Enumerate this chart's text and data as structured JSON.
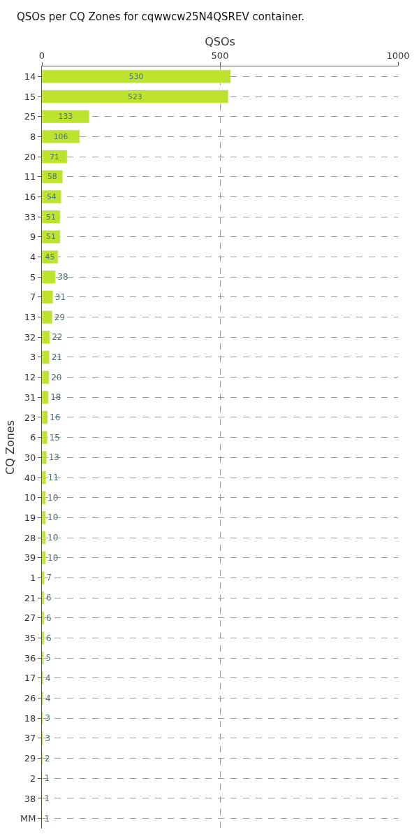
{
  "chart_data": {
    "type": "bar",
    "orientation": "horizontal",
    "title": "QSOs per CQ Zones for cqwwcw25N4QSREV container.",
    "xlabel": "QSOs",
    "ylabel": "CQ Zones",
    "categories": [
      "14",
      "15",
      "25",
      "8",
      "20",
      "11",
      "16",
      "33",
      "9",
      "4",
      "5",
      "7",
      "13",
      "32",
      "3",
      "12",
      "31",
      "23",
      "6",
      "30",
      "40",
      "10",
      "19",
      "28",
      "39",
      "1",
      "21",
      "27",
      "35",
      "36",
      "17",
      "26",
      "18",
      "37",
      "29",
      "2",
      "38",
      "MM"
    ],
    "values": [
      530,
      523,
      133,
      106,
      71,
      58,
      54,
      51,
      51,
      45,
      38,
      31,
      29,
      22,
      21,
      20,
      18,
      16,
      15,
      13,
      11,
      10,
      10,
      10,
      10,
      7,
      6,
      6,
      6,
      5,
      4,
      4,
      3,
      3,
      2,
      1,
      1,
      1
    ],
    "color": "#bde32e",
    "data_labels": true,
    "xlim": [
      0,
      1000
    ],
    "xticks": [
      0,
      500,
      1000
    ],
    "grid": true,
    "legend": false
  }
}
